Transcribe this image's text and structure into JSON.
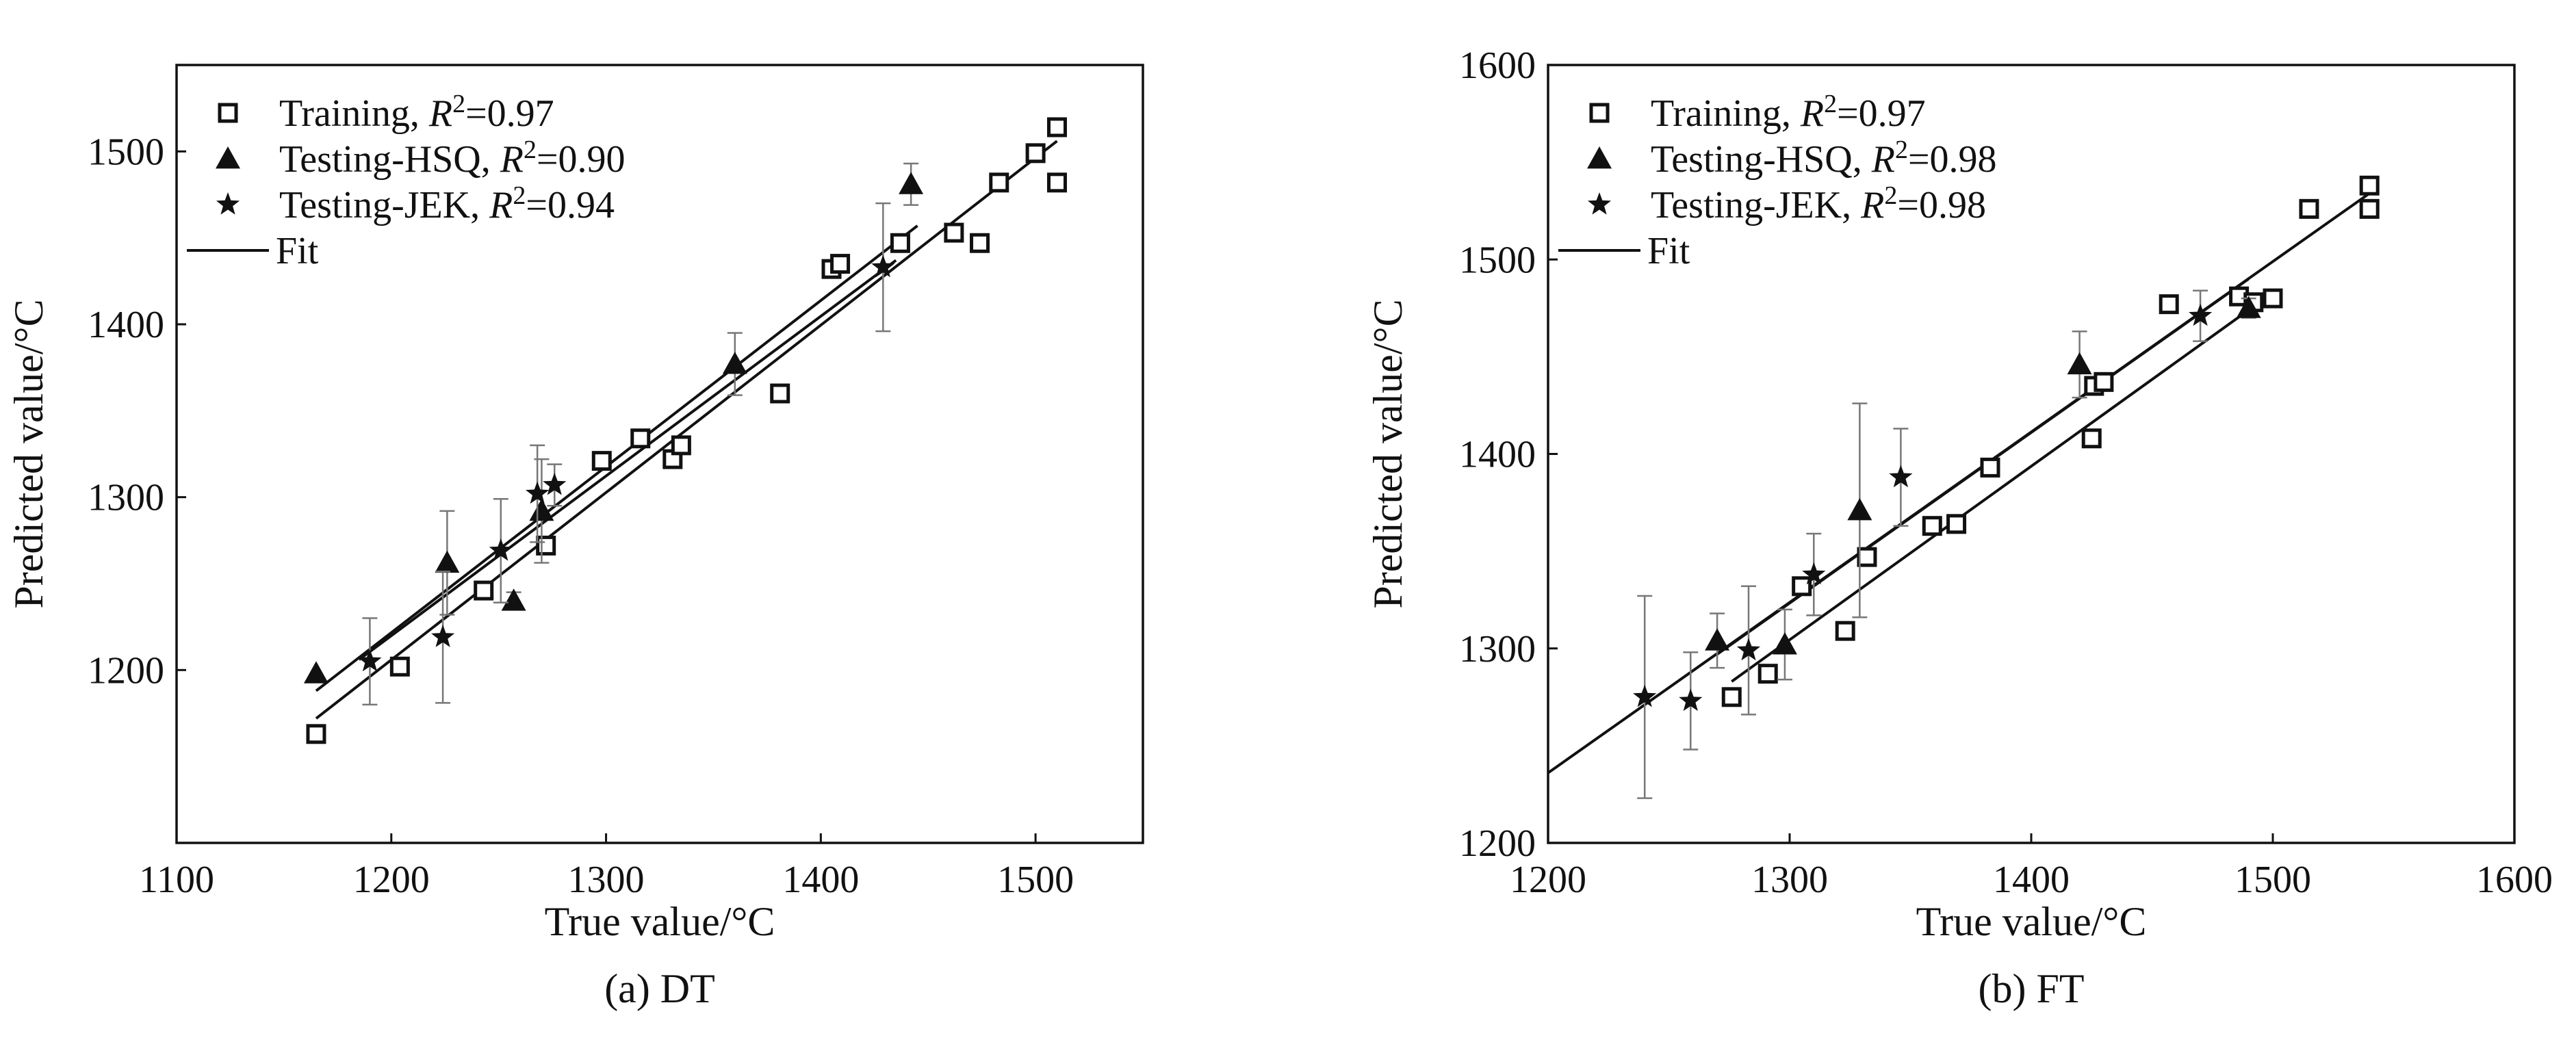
{
  "chart_data": [
    {
      "type": "scatter",
      "caption": "(a) DT",
      "xlabel": "True value/°C",
      "ylabel": "Predicted value/°C",
      "xlim": [
        1100,
        1550
      ],
      "ylim": [
        1100,
        1550
      ],
      "xticks": [
        1100,
        1200,
        1300,
        1400,
        1500
      ],
      "yticks": [
        1200,
        1300,
        1400,
        1500
      ],
      "legend_position": "top-left",
      "legend": [
        {
          "label": "Training, ",
          "r2_symbol": "R",
          "r2_sup": "2",
          "r2_value": "=0.97",
          "marker": "open-square"
        },
        {
          "label": "Testing-HSQ, ",
          "r2_symbol": "R",
          "r2_sup": "2",
          "r2_value": "=0.90",
          "marker": "filled-triangle"
        },
        {
          "label": "Testing-JEK, ",
          "r2_symbol": "R",
          "r2_sup": "2",
          "r2_value": "=0.94",
          "marker": "filled-star"
        },
        {
          "label": "Fit",
          "marker": "line"
        }
      ],
      "series": [
        {
          "name": "Training",
          "marker": "open-square",
          "x": [
            1165,
            1204,
            1243,
            1272,
            1298,
            1316,
            1331,
            1335,
            1381,
            1405,
            1409,
            1437,
            1462,
            1474,
            1483,
            1500,
            1510,
            1510
          ],
          "y": [
            1163,
            1202,
            1246,
            1272,
            1321,
            1334,
            1322,
            1330,
            1360,
            1432,
            1435,
            1447,
            1453,
            1447,
            1482,
            1499,
            1482,
            1514
          ]
        },
        {
          "name": "Testing-HSQ",
          "marker": "filled-triangle",
          "x": [
            1165,
            1226,
            1257,
            1270,
            1360,
            1442
          ],
          "y": [
            1198,
            1262,
            1240,
            1292,
            1377,
            1481
          ],
          "err": [
            0,
            30,
            5,
            30,
            18,
            12
          ]
        },
        {
          "name": "Testing-JEK",
          "marker": "filled-star",
          "x": [
            1190,
            1224,
            1251,
            1268,
            1276,
            1429
          ],
          "y": [
            1205,
            1219,
            1269,
            1302,
            1307,
            1433
          ],
          "err": [
            25,
            38,
            30,
            28,
            12,
            37
          ]
        }
      ],
      "fits": [
        {
          "x": [
            1165,
            1510
          ],
          "y": [
            1172,
            1506
          ]
        },
        {
          "x": [
            1165,
            1445
          ],
          "y": [
            1188,
            1457
          ]
        },
        {
          "x": [
            1185,
            1435
          ],
          "y": [
            1206,
            1437
          ]
        }
      ]
    },
    {
      "type": "scatter",
      "caption": "(b) FT",
      "xlabel": "True value/°C",
      "ylabel": "Predicted value/°C",
      "xlim": [
        1200,
        1600
      ],
      "ylim": [
        1200,
        1600
      ],
      "xticks": [
        1200,
        1300,
        1400,
        1500,
        1600
      ],
      "yticks": [
        1200,
        1300,
        1400,
        1500,
        1600
      ],
      "legend_position": "top-left",
      "legend": [
        {
          "label": "Training, ",
          "r2_symbol": "R",
          "r2_sup": "2",
          "r2_value": "=0.97",
          "marker": "open-square"
        },
        {
          "label": "Testing-HSQ, ",
          "r2_symbol": "R",
          "r2_sup": "2",
          "r2_value": "=0.98",
          "marker": "filled-triangle"
        },
        {
          "label": "Testing-JEK, ",
          "r2_symbol": "R",
          "r2_sup": "2",
          "r2_value": "=0.98",
          "marker": "filled-star"
        },
        {
          "label": "Fit",
          "marker": "line"
        }
      ],
      "series": [
        {
          "name": "Training",
          "marker": "open-square",
          "x": [
            1276,
            1291,
            1305,
            1323,
            1332,
            1359,
            1369,
            1383,
            1425,
            1426,
            1430,
            1457,
            1486,
            1492,
            1500,
            1515,
            1540,
            1540
          ],
          "y": [
            1275,
            1287,
            1332,
            1309,
            1347,
            1363,
            1364,
            1393,
            1408,
            1435,
            1437,
            1477,
            1481,
            1478,
            1480,
            1526,
            1526,
            1538
          ]
        },
        {
          "name": "Testing-HSQ",
          "marker": "filled-triangle",
          "x": [
            1270,
            1298,
            1329,
            1420,
            1490
          ],
          "y": [
            1304,
            1302,
            1371,
            1446,
            1475
          ],
          "err": [
            14,
            18,
            55,
            17,
            5
          ]
        },
        {
          "name": "Testing-JEK",
          "marker": "filled-star",
          "x": [
            1240,
            1259,
            1283,
            1310,
            1346,
            1470
          ],
          "y": [
            1275,
            1273,
            1299,
            1338,
            1388,
            1471
          ],
          "err": [
            52,
            25,
            33,
            21,
            25,
            13
          ]
        }
      ],
      "fits": [
        {
          "x": [
            1200,
            1540
          ],
          "y": [
            1236,
            1534
          ]
        },
        {
          "x": [
            1270,
            1490
          ],
          "y": [
            1297,
            1490
          ]
        },
        {
          "x": [
            1276,
            1490
          ],
          "y": [
            1283,
            1474
          ]
        }
      ]
    }
  ]
}
